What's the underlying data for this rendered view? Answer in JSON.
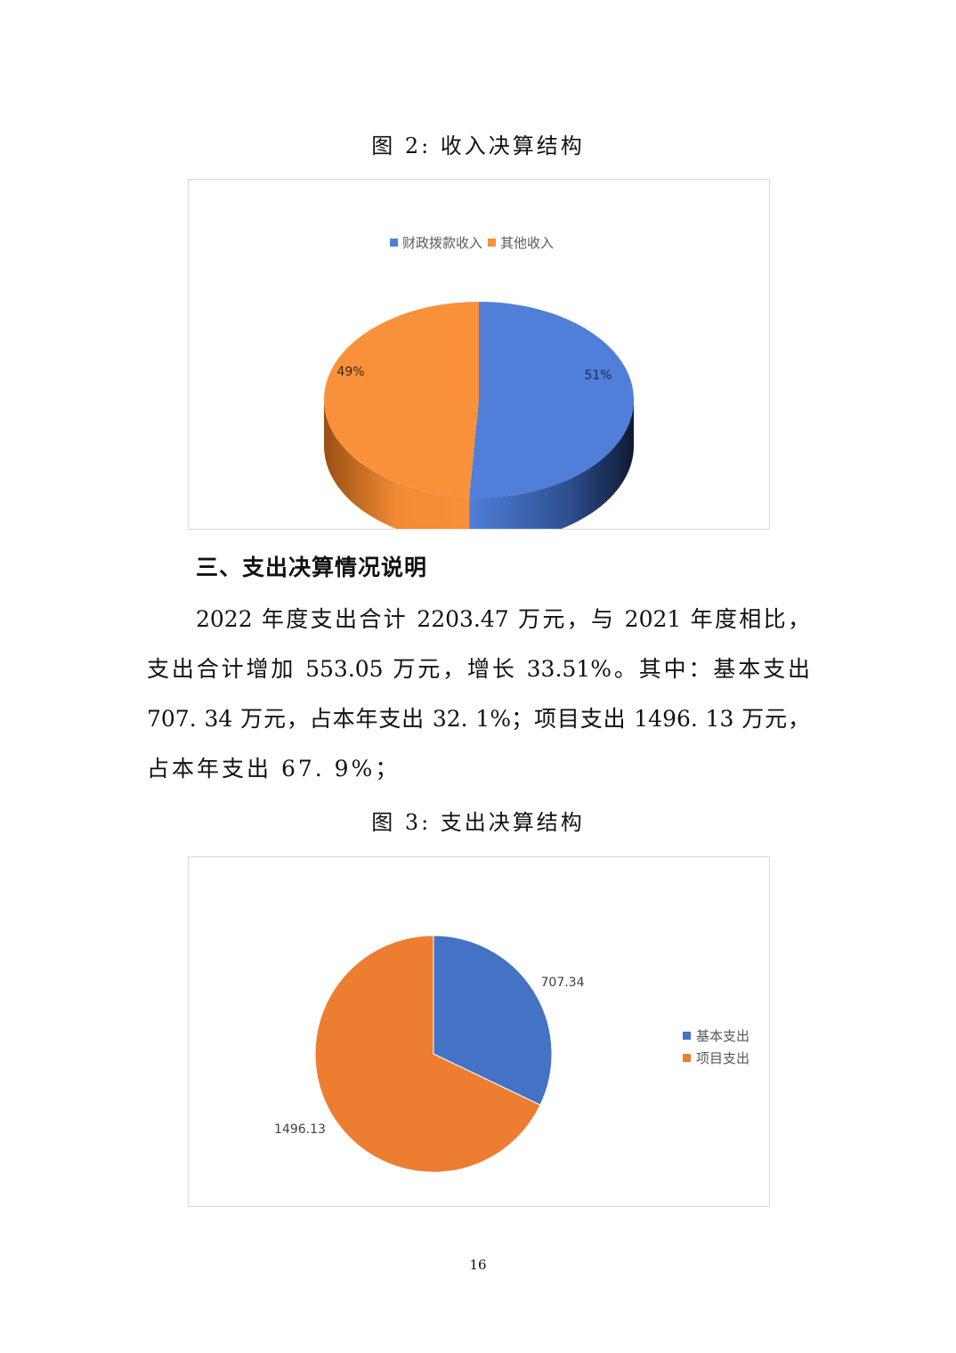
{
  "figure2": {
    "caption": "图 2:  收入决算结构"
  },
  "section": {
    "heading": "三、支出决算情况说明"
  },
  "paragraph": {
    "lines": [
      "2022 年度支出合计 2203.47 万元，与 2021 年度相比，",
      "支出合计增加 553.05 万元，增长 33.51%。其中：基本支出",
      "707. 34 万元，占本年支出 32. 1%；项目支出 1496. 13 万元，",
      "占本年支出 67. 9%；"
    ]
  },
  "figure3": {
    "caption": "图 3:  支出决算结构"
  },
  "page_number": "16",
  "chart_data": [
    {
      "type": "pie",
      "style": "3d",
      "legend_position": "top",
      "categories": [
        "财政拨款收入",
        "其他收入"
      ],
      "values": [
        51,
        49
      ],
      "data_labels": [
        "51%",
        "49%"
      ],
      "colors": [
        "#4f7fd9",
        "#f8913a"
      ]
    },
    {
      "type": "pie",
      "legend_position": "right",
      "categories": [
        "基本支出",
        "项目支出"
      ],
      "values": [
        707.34,
        1496.13
      ],
      "data_labels": [
        "707.34",
        "1496.13"
      ],
      "colors": [
        "#4472c4",
        "#ed7d31"
      ]
    }
  ]
}
